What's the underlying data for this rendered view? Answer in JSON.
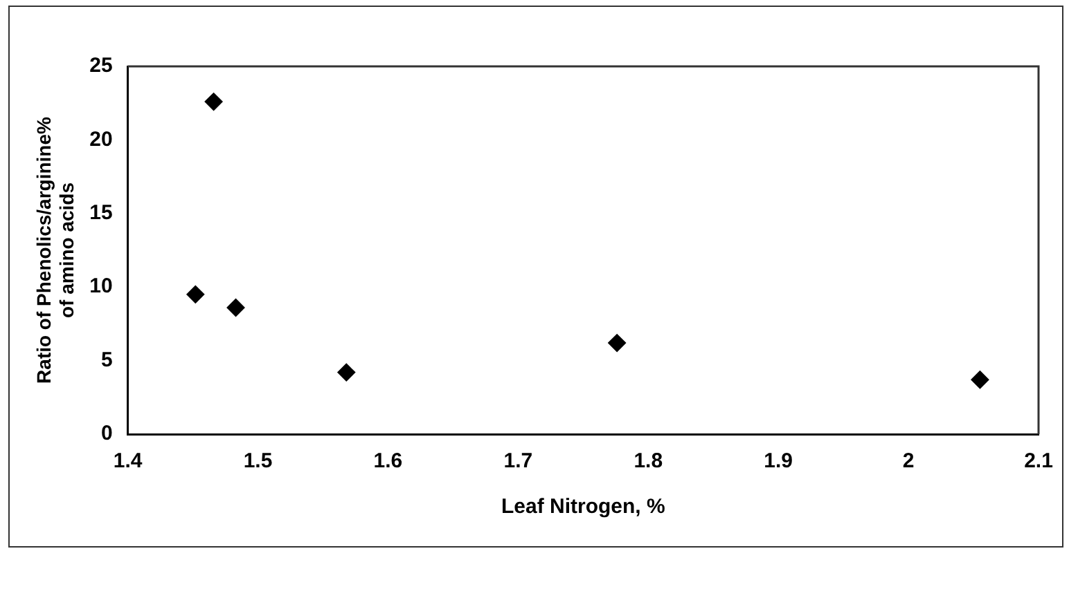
{
  "chart_data": {
    "type": "scatter",
    "xlabel": "Leaf Nitrogen, %",
    "ylabel": "Ratio of Phenolics/arginine% of amino acids",
    "x": [
      1.452,
      1.466,
      1.483,
      1.568,
      1.776,
      2.055
    ],
    "values": [
      9.5,
      22.6,
      8.6,
      4.2,
      6.2,
      3.7
    ],
    "color": "#000000",
    "marker": "diamond",
    "xlim": [
      1.4,
      2.1
    ],
    "xticks": [
      1.4,
      1.5,
      1.6,
      1.7,
      1.8,
      1.9,
      2,
      2.1
    ],
    "ylim": [
      0,
      25
    ],
    "yticks": [
      0,
      5,
      10,
      15,
      20,
      25
    ],
    "grid": false
  }
}
